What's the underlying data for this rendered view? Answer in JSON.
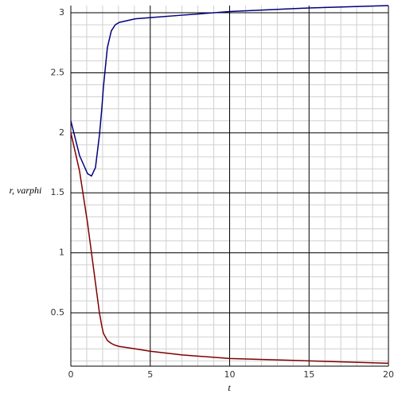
{
  "chart_data": {
    "type": "line",
    "x_label": "t",
    "y_label": "r, varphi",
    "xlim": [
      0,
      20
    ],
    "ylim": [
      0.056,
      3.06
    ],
    "xticks": [
      0,
      5,
      10,
      15,
      20
    ],
    "yticks": [
      0.5,
      1,
      1.5,
      2,
      2.5,
      3
    ],
    "xminorticks": [
      1,
      2,
      3,
      4,
      6,
      7,
      8,
      9,
      11,
      12,
      13,
      14,
      16,
      17,
      18,
      19
    ],
    "yminorticks": [
      0.1,
      0.2,
      0.3,
      0.4,
      0.6,
      0.7,
      0.8,
      0.9,
      1.1,
      1.2,
      1.3,
      1.4,
      1.6,
      1.7,
      1.8,
      1.9,
      2.1,
      2.2,
      2.3,
      2.4,
      2.6,
      2.7,
      2.8,
      2.9
    ],
    "grid": true,
    "x": [
      0,
      0.55,
      1.05,
      1.3,
      1.55,
      1.8,
      1.95,
      2.05,
      2.3,
      2.55,
      2.8,
      3.05,
      4.06,
      5,
      7,
      10,
      15,
      20
    ],
    "series": [
      {
        "color": "#000080",
        "values": [
          2.1,
          1.81,
          1.66,
          1.64,
          1.71,
          1.98,
          2.2,
          2.38,
          2.71,
          2.85,
          2.9,
          2.92,
          2.95,
          2.96,
          2.98,
          3.01,
          3.04,
          3.06
        ]
      },
      {
        "color": "#800000",
        "values": [
          2.0,
          1.68,
          1.25,
          1.0,
          0.75,
          0.5,
          0.39,
          0.33,
          0.27,
          0.245,
          0.23,
          0.22,
          0.2,
          0.18,
          0.15,
          0.12,
          0.1,
          0.08
        ]
      }
    ]
  }
}
